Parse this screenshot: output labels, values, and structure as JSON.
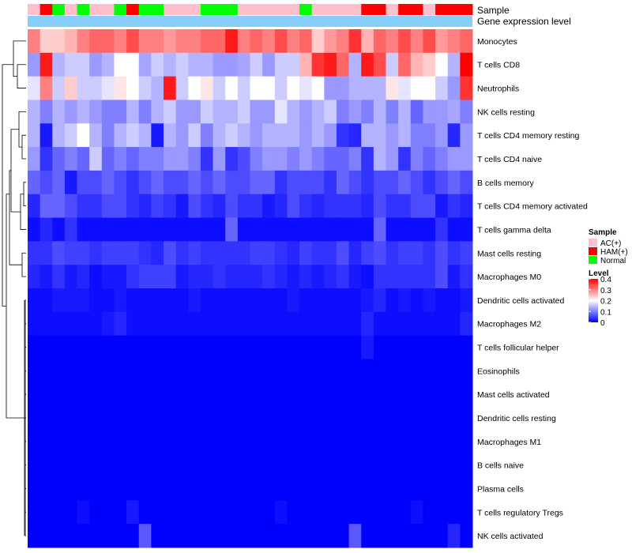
{
  "chart_data": {
    "type": "heatmap",
    "title": "",
    "annotation_labels": [
      "Sample",
      "Gene expression level"
    ],
    "sample_groups": [
      "AC(+)",
      "HAM(+)",
      "Normal",
      "AC(+)",
      "Normal",
      "AC(+)",
      "AC(+)",
      "Normal",
      "HAM(+)",
      "Normal",
      "Normal",
      "AC(+)",
      "AC(+)",
      "AC(+)",
      "Normal",
      "Normal",
      "Normal",
      "AC(+)",
      "AC(+)",
      "AC(+)",
      "AC(+)",
      "AC(+)",
      "Normal",
      "AC(+)",
      "AC(+)",
      "AC(+)",
      "AC(+)",
      "HAM(+)",
      "HAM(+)",
      "AC(+)",
      "HAM(+)",
      "HAM(+)",
      "AC(+)",
      "HAM(+)",
      "HAM(+)",
      "HAM(+)"
    ],
    "rows": [
      "Monocytes",
      "T cells CD8",
      "Neutrophils",
      "NK cells resting",
      "T cells CD4 memory resting",
      "T cells CD4 naive",
      "B cells memory",
      "T cells CD4 memory activated",
      "T cells gamma delta",
      "Mast cells resting",
      "Macrophages M0",
      "Dendritic cells activated",
      "Macrophages M2",
      "T cells follicular helper",
      "Eosinophils",
      "Mast cells activated",
      "Dendritic cells resting",
      "Macrophages M1",
      "B cells naive",
      "Plasma cells",
      "T cells regulatory  Tregs",
      "NK cells activated"
    ],
    "values": [
      [
        0.3,
        0.24,
        0.24,
        0.26,
        0.3,
        0.32,
        0.32,
        0.3,
        0.34,
        0.3,
        0.3,
        0.28,
        0.3,
        0.3,
        0.32,
        0.32,
        0.38,
        0.3,
        0.32,
        0.3,
        0.34,
        0.3,
        0.32,
        0.24,
        0.28,
        0.3,
        0.36,
        0.26,
        0.32,
        0.3,
        0.34,
        0.3,
        0.34,
        0.28,
        0.3,
        0.32
      ],
      [
        0.12,
        0.38,
        0.14,
        0.16,
        0.16,
        0.12,
        0.14,
        0.2,
        0.2,
        0.13,
        0.16,
        0.14,
        0.16,
        0.14,
        0.14,
        0.12,
        0.12,
        0.13,
        0.16,
        0.12,
        0.16,
        0.16,
        0.26,
        0.36,
        0.38,
        0.32,
        0.14,
        0.38,
        0.34,
        0.16,
        0.32,
        0.26,
        0.24,
        0.2,
        0.14,
        0.4
      ],
      [
        0.18,
        0.3,
        0.16,
        0.24,
        0.16,
        0.16,
        0.18,
        0.22,
        0.2,
        0.16,
        0.14,
        0.38,
        0.16,
        0.2,
        0.22,
        0.16,
        0.2,
        0.16,
        0.2,
        0.2,
        0.16,
        0.2,
        0.18,
        0.2,
        0.12,
        0.12,
        0.14,
        0.14,
        0.14,
        0.22,
        0.18,
        0.2,
        0.2,
        0.16,
        0.12,
        0.36
      ],
      [
        0.14,
        0.1,
        0.14,
        0.12,
        0.14,
        0.12,
        0.1,
        0.1,
        0.14,
        0.1,
        0.14,
        0.16,
        0.12,
        0.12,
        0.16,
        0.14,
        0.14,
        0.16,
        0.12,
        0.12,
        0.18,
        0.14,
        0.12,
        0.14,
        0.16,
        0.1,
        0.12,
        0.1,
        0.14,
        0.1,
        0.14,
        0.08,
        0.12,
        0.12,
        0.13,
        0.1
      ],
      [
        0.14,
        0.02,
        0.14,
        0.16,
        0.2,
        0.14,
        0.1,
        0.14,
        0.16,
        0.14,
        0.02,
        0.14,
        0.12,
        0.16,
        0.1,
        0.14,
        0.16,
        0.14,
        0.12,
        0.14,
        0.14,
        0.14,
        0.12,
        0.14,
        0.12,
        0.04,
        0.03,
        0.14,
        0.14,
        0.12,
        0.14,
        0.1,
        0.1,
        0.12,
        0.03,
        0.12
      ],
      [
        0.12,
        0.04,
        0.08,
        0.1,
        0.08,
        0.16,
        0.08,
        0.1,
        0.08,
        0.1,
        0.1,
        0.12,
        0.12,
        0.1,
        0.04,
        0.12,
        0.04,
        0.06,
        0.1,
        0.12,
        0.12,
        0.1,
        0.12,
        0.1,
        0.08,
        0.08,
        0.1,
        0.04,
        0.14,
        0.12,
        0.04,
        0.1,
        0.08,
        0.1,
        0.12,
        0.12
      ],
      [
        0.08,
        0.06,
        0.08,
        0.02,
        0.06,
        0.06,
        0.08,
        0.06,
        0.04,
        0.06,
        0.08,
        0.06,
        0.06,
        0.08,
        0.06,
        0.08,
        0.06,
        0.06,
        0.08,
        0.08,
        0.04,
        0.06,
        0.06,
        0.06,
        0.04,
        0.08,
        0.06,
        0.04,
        0.06,
        0.06,
        0.08,
        0.06,
        0.04,
        0.06,
        0.08,
        0.06
      ],
      [
        0.03,
        0.08,
        0.08,
        0.06,
        0.04,
        0.04,
        0.06,
        0.06,
        0.04,
        0.03,
        0.05,
        0.04,
        0.02,
        0.06,
        0.04,
        0.03,
        0.06,
        0.04,
        0.04,
        0.02,
        0.03,
        0.06,
        0.04,
        0.03,
        0.04,
        0.04,
        0.04,
        0.03,
        0.06,
        0.04,
        0.04,
        0.06,
        0.06,
        0.02,
        0.04,
        0.03
      ],
      [
        0.01,
        0.03,
        0.01,
        0.04,
        0.01,
        0.01,
        0.01,
        0.01,
        0.01,
        0.01,
        0.01,
        0.01,
        0.01,
        0.01,
        0.01,
        0.01,
        0.08,
        0.01,
        0.01,
        0.01,
        0.01,
        0.01,
        0.01,
        0.01,
        0.01,
        0.01,
        0.01,
        0.01,
        0.08,
        0.01,
        0.01,
        0.01,
        0.01,
        0.04,
        0.01,
        0.01
      ],
      [
        0.04,
        0.04,
        0.06,
        0.05,
        0.05,
        0.04,
        0.05,
        0.05,
        0.05,
        0.04,
        0.03,
        0.06,
        0.04,
        0.05,
        0.04,
        0.04,
        0.04,
        0.04,
        0.05,
        0.05,
        0.04,
        0.03,
        0.05,
        0.04,
        0.04,
        0.06,
        0.03,
        0.05,
        0.06,
        0.04,
        0.05,
        0.05,
        0.04,
        0.06,
        0.04,
        0.05
      ],
      [
        0.03,
        0.02,
        0.04,
        0.02,
        0.03,
        0.01,
        0.02,
        0.02,
        0.04,
        0.05,
        0.05,
        0.05,
        0.02,
        0.03,
        0.03,
        0.04,
        0.03,
        0.03,
        0.03,
        0.04,
        0.03,
        0.02,
        0.03,
        0.02,
        0.03,
        0.04,
        0.02,
        0.01,
        0.04,
        0.04,
        0.04,
        0.04,
        0.04,
        0.06,
        0.02,
        0.04
      ],
      [
        0.01,
        0.01,
        0.02,
        0.02,
        0.02,
        0.01,
        0.01,
        0.02,
        0.01,
        0.01,
        0.01,
        0.01,
        0.01,
        0.02,
        0.01,
        0.01,
        0.01,
        0.01,
        0.01,
        0.01,
        0.01,
        0.02,
        0.01,
        0.01,
        0.01,
        0.01,
        0.01,
        0.02,
        0.03,
        0.01,
        0.02,
        0.01,
        0.02,
        0.01,
        0.01,
        0.02
      ],
      [
        0.01,
        0.01,
        0.01,
        0.01,
        0.01,
        0.01,
        0.02,
        0.03,
        0.01,
        0.01,
        0.01,
        0.01,
        0.01,
        0.01,
        0.01,
        0.01,
        0.01,
        0.01,
        0.01,
        0.01,
        0.01,
        0.01,
        0.01,
        0.01,
        0.01,
        0.01,
        0.01,
        0.03,
        0.01,
        0.01,
        0.01,
        0.01,
        0.01,
        0.01,
        0.01,
        0.03
      ],
      [
        0.0,
        0.0,
        0.0,
        0.0,
        0.0,
        0.0,
        0.0,
        0.0,
        0.0,
        0.0,
        0.0,
        0.0,
        0.0,
        0.0,
        0.0,
        0.0,
        0.0,
        0.0,
        0.0,
        0.0,
        0.0,
        0.0,
        0.0,
        0.0,
        0.0,
        0.0,
        0.0,
        0.02,
        0.0,
        0.0,
        0.0,
        0.0,
        0.0,
        0.0,
        0.0,
        0.0
      ],
      [
        0.0,
        0.0,
        0.0,
        0.0,
        0.0,
        0.0,
        0.0,
        0.0,
        0.0,
        0.0,
        0.0,
        0.0,
        0.0,
        0.0,
        0.0,
        0.0,
        0.0,
        0.0,
        0.0,
        0.0,
        0.0,
        0.0,
        0.0,
        0.0,
        0.0,
        0.0,
        0.0,
        0.0,
        0.0,
        0.0,
        0.0,
        0.0,
        0.0,
        0.0,
        0.0,
        0.0
      ],
      [
        0.0,
        0.0,
        0.0,
        0.0,
        0.0,
        0.0,
        0.0,
        0.0,
        0.0,
        0.0,
        0.0,
        0.0,
        0.0,
        0.0,
        0.0,
        0.0,
        0.0,
        0.0,
        0.0,
        0.0,
        0.0,
        0.0,
        0.0,
        0.0,
        0.0,
        0.0,
        0.0,
        0.0,
        0.0,
        0.0,
        0.0,
        0.0,
        0.0,
        0.0,
        0.0,
        0.0
      ],
      [
        0.0,
        0.0,
        0.0,
        0.0,
        0.0,
        0.0,
        0.0,
        0.0,
        0.0,
        0.0,
        0.0,
        0.0,
        0.0,
        0.0,
        0.0,
        0.0,
        0.0,
        0.0,
        0.0,
        0.0,
        0.0,
        0.0,
        0.0,
        0.0,
        0.0,
        0.0,
        0.0,
        0.0,
        0.0,
        0.0,
        0.0,
        0.0,
        0.0,
        0.0,
        0.0,
        0.0
      ],
      [
        0.0,
        0.0,
        0.0,
        0.0,
        0.0,
        0.0,
        0.0,
        0.0,
        0.0,
        0.0,
        0.0,
        0.0,
        0.0,
        0.0,
        0.0,
        0.0,
        0.0,
        0.0,
        0.0,
        0.0,
        0.0,
        0.0,
        0.0,
        0.0,
        0.0,
        0.0,
        0.0,
        0.0,
        0.0,
        0.0,
        0.0,
        0.0,
        0.0,
        0.0,
        0.0,
        0.0
      ],
      [
        0.0,
        0.0,
        0.0,
        0.0,
        0.0,
        0.0,
        0.0,
        0.0,
        0.0,
        0.0,
        0.0,
        0.0,
        0.0,
        0.0,
        0.0,
        0.0,
        0.0,
        0.0,
        0.0,
        0.0,
        0.0,
        0.0,
        0.0,
        0.0,
        0.0,
        0.0,
        0.0,
        0.0,
        0.0,
        0.0,
        0.0,
        0.0,
        0.0,
        0.0,
        0.0,
        0.0
      ],
      [
        0.0,
        0.0,
        0.0,
        0.0,
        0.0,
        0.0,
        0.0,
        0.0,
        0.0,
        0.0,
        0.0,
        0.0,
        0.0,
        0.0,
        0.0,
        0.0,
        0.0,
        0.0,
        0.0,
        0.0,
        0.0,
        0.0,
        0.0,
        0.0,
        0.0,
        0.0,
        0.0,
        0.0,
        0.0,
        0.0,
        0.0,
        0.0,
        0.0,
        0.0,
        0.0,
        0.0
      ],
      [
        0.0,
        0.0,
        0.0,
        0.0,
        0.01,
        0.0,
        0.0,
        0.0,
        0.02,
        0.0,
        0.0,
        0.0,
        0.0,
        0.0,
        0.0,
        0.0,
        0.0,
        0.0,
        0.0,
        0.0,
        0.01,
        0.0,
        0.0,
        0.0,
        0.0,
        0.0,
        0.0,
        0.0,
        0.0,
        0.0,
        0.0,
        0.01,
        0.0,
        0.0,
        0.0,
        0.0
      ],
      [
        0.0,
        0.0,
        0.0,
        0.0,
        0.0,
        0.0,
        0.0,
        0.0,
        0.0,
        0.07,
        0.0,
        0.0,
        0.0,
        0.0,
        0.0,
        0.0,
        0.0,
        0.0,
        0.0,
        0.0,
        0.0,
        0.0,
        0.0,
        0.0,
        0.0,
        0.0,
        0.07,
        0.0,
        0.0,
        0.0,
        0.0,
        0.0,
        0.0,
        0.0,
        0.03,
        0.0
      ]
    ],
    "legend": {
      "sample": {
        "title": "Sample",
        "items": [
          {
            "label": "AC(+)",
            "color": "#FFC0CB"
          },
          {
            "label": "HAM(+)",
            "color": "#FF0000"
          },
          {
            "label": "Normal",
            "color": "#00FF00"
          }
        ]
      },
      "level": {
        "title": "Level",
        "ticks": [
          "0.4",
          "0.3",
          "0.2",
          "0.1",
          "0"
        ],
        "range": [
          0,
          0.4
        ]
      }
    },
    "colors": {
      "low": "#0000FF",
      "mid": "#FFFFFF",
      "high": "#FF0000",
      "gene_bar": "#87CEFA"
    }
  }
}
